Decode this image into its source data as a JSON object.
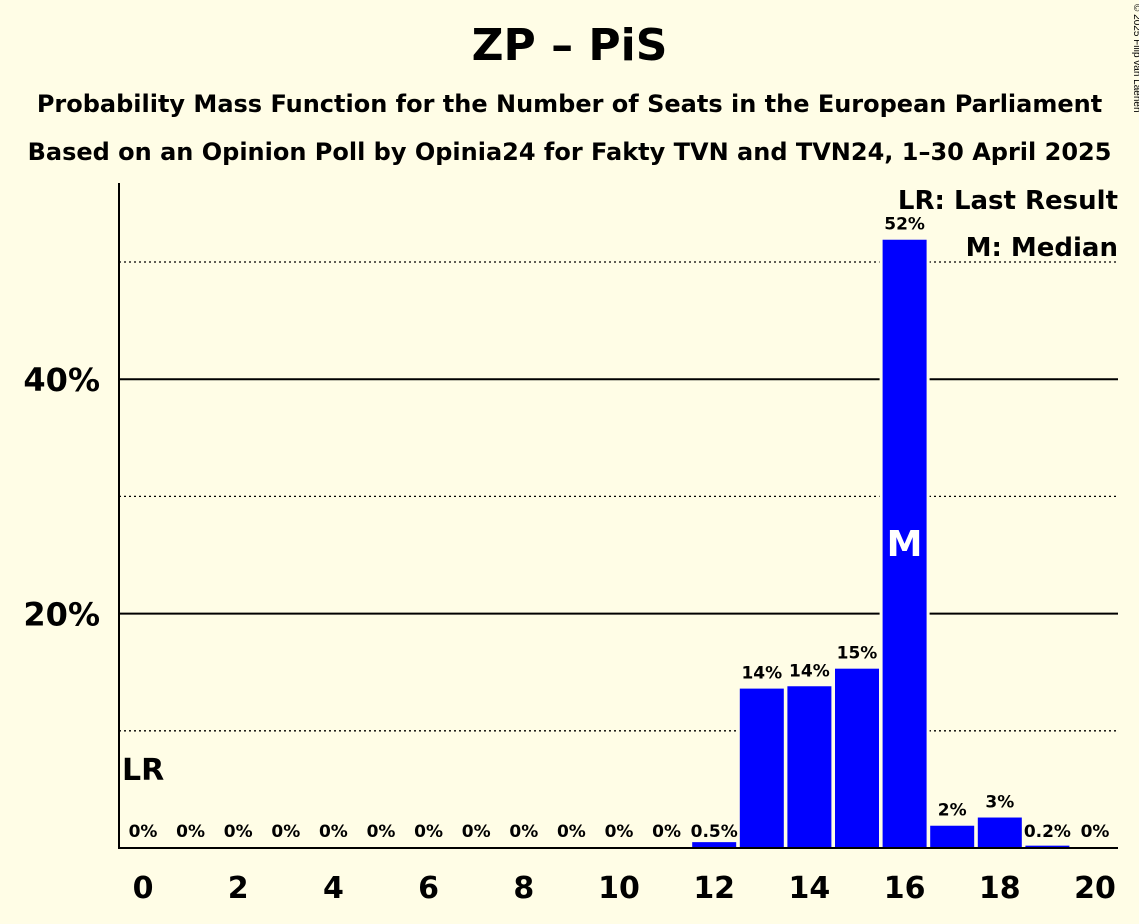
{
  "title": "ZP – PiS",
  "subtitle1": "Probability Mass Function for the Number of Seats in the European Parliament",
  "subtitle2": "Based on an Opinion Poll by Opinia24 for Fakty TVN and TVN24, 1–30 April 2025",
  "credit": "© 2025 Filip van Laenen",
  "legend": {
    "lr": "LR: Last Result",
    "median": "M: Median"
  },
  "colors": {
    "bar": "#0000ff",
    "background": "#fffde6"
  },
  "chart_data": {
    "type": "bar",
    "x": [
      0,
      1,
      2,
      3,
      4,
      5,
      6,
      7,
      8,
      9,
      10,
      11,
      12,
      13,
      14,
      15,
      16,
      17,
      18,
      19,
      20
    ],
    "values": [
      0,
      0,
      0,
      0,
      0,
      0,
      0,
      0,
      0,
      0,
      0,
      0,
      0.5,
      13.6,
      13.8,
      15.3,
      51.9,
      1.9,
      2.6,
      0.2,
      0
    ],
    "value_labels": [
      "0%",
      "0%",
      "0%",
      "0%",
      "0%",
      "0%",
      "0%",
      "0%",
      "0%",
      "0%",
      "0%",
      "0%",
      "0.5%",
      "14%",
      "14%",
      "15%",
      "52%",
      "2%",
      "3%",
      "0.2%",
      "0%"
    ],
    "x_tick_values": [
      0,
      2,
      4,
      6,
      8,
      10,
      12,
      14,
      16,
      18,
      20
    ],
    "x_tick_labels": [
      "0",
      "2",
      "4",
      "6",
      "8",
      "10",
      "12",
      "14",
      "16",
      "18",
      "20"
    ],
    "y_tick_labels": [
      "20%",
      "40%"
    ],
    "y_solid_gridlines": [
      20,
      40
    ],
    "y_dotted_gridlines": [
      10,
      30,
      50
    ],
    "ylim": [
      0,
      56
    ],
    "last_result": 0,
    "last_result_label": "LR",
    "median": 16,
    "median_label": "M"
  }
}
